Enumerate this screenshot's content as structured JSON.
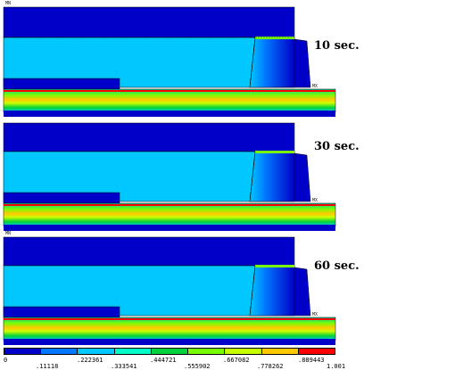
{
  "panels": [
    {
      "time_label": "10 sec.",
      "mn_label": "MN",
      "mx_label": "MX"
    },
    {
      "time_label": "30 sec.",
      "mn_label": "MN",
      "mx_label": "MX"
    },
    {
      "time_label": "60 sec.",
      "mn_label": "MN",
      "mx_label": "MX"
    }
  ],
  "legend": {
    "colors": [
      "#0000c8",
      "#0078ff",
      "#00c8ff",
      "#00ffc8",
      "#00d23c",
      "#78ff00",
      "#c8ff00",
      "#ffc800",
      "#ff0000"
    ],
    "ticks_top": [
      "0",
      ".222361",
      ".444721",
      ".667082",
      ".889443"
    ],
    "ticks_bottom": [
      ".11118",
      ".333541",
      ".555902",
      ".778262",
      "1.001"
    ]
  }
}
